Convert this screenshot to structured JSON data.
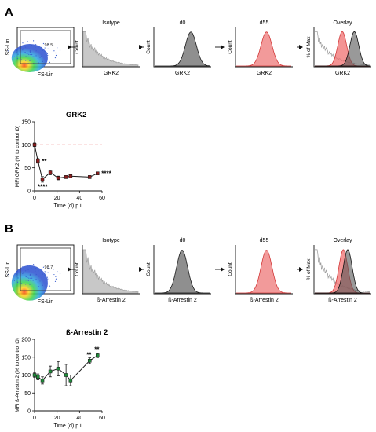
{
  "panels": [
    {
      "letter": "A",
      "gate": {
        "ylabel": "SS-Lin",
        "xlabel": "FS-Lin",
        "percent": "98.5"
      },
      "histograms": [
        {
          "title": "Isotype",
          "xlabel": "GRK2",
          "ylabel": "Count",
          "fill": "#c8c8c8",
          "stroke": "#9a9a9a",
          "kind": "isotype"
        },
        {
          "title": "d0",
          "xlabel": "GRK2",
          "ylabel": "Count",
          "fill": "#8f8f8f",
          "stroke": "#1a1a1a",
          "kind": "peak",
          "peak": 0.66
        },
        {
          "title": "d55",
          "xlabel": "GRK2",
          "ylabel": "Count",
          "fill": "#f29a9a",
          "stroke": "#d23a3a",
          "kind": "peak",
          "peak": 0.55
        },
        {
          "title": "Overlay",
          "xlabel": "GRK2",
          "ylabel": "% of Max",
          "kind": "overlay",
          "peaks": [
            0.5,
            0.72
          ]
        }
      ]
    },
    {
      "letter": "B",
      "gate": {
        "ylabel": "SS-Lin",
        "xlabel": "FS-Lin",
        "percent": "98.7"
      },
      "histograms": [
        {
          "title": "Isotype",
          "xlabel": "ß-Arrestin 2",
          "ylabel": "Count",
          "fill": "#c8c8c8",
          "stroke": "#9a9a9a",
          "kind": "isotype"
        },
        {
          "title": "d0",
          "xlabel": "ß-Arrestin 2",
          "ylabel": "Count",
          "fill": "#8f8f8f",
          "stroke": "#1a1a1a",
          "kind": "peak",
          "peak": 0.5
        },
        {
          "title": "d55",
          "xlabel": "ß-Arrestin 2",
          "ylabel": "Count",
          "fill": "#f29a9a",
          "stroke": "#d23a3a",
          "kind": "peak",
          "peak": 0.55
        },
        {
          "title": "Overlay",
          "xlabel": "ß-Arrestin 2",
          "ylabel": "% of Max",
          "kind": "overlay",
          "peaks": [
            0.52,
            0.6
          ]
        }
      ]
    }
  ],
  "chart_data": [
    {
      "type": "line",
      "title": "GRK2",
      "xlabel": "Time (d) p.i.",
      "ylabel": "MFI GRK2 (% to control t0)",
      "xlim": [
        0,
        60
      ],
      "ylim": [
        0,
        150
      ],
      "xticks": [
        "0",
        "20",
        "40",
        "60"
      ],
      "yticks": [
        "0",
        "50",
        "100",
        "150"
      ],
      "reference_line": 100,
      "x": [
        0,
        3,
        7,
        14,
        21,
        28,
        32,
        49,
        56
      ],
      "y": [
        100,
        65,
        25,
        40,
        28,
        30,
        32,
        30,
        38
      ],
      "error": [
        4,
        5,
        6,
        5,
        4,
        3,
        3,
        3,
        2
      ],
      "annotations": [
        {
          "text": "**",
          "x": 3,
          "y": 65
        },
        {
          "text": "****",
          "x": 7,
          "y": 25
        },
        {
          "text": "****",
          "x": 56,
          "y": 38
        }
      ],
      "marker_color": "#8b1e1e",
      "line_color": "#1a1a1a",
      "ref_color": "#e02020"
    },
    {
      "type": "line",
      "title": "ß-Arrestin 2",
      "xlabel": "Time (d) p.i.",
      "ylabel": "MFI ß-Arrestin 2 (% to control t0)",
      "xlim": [
        0,
        60
      ],
      "ylim": [
        0,
        200
      ],
      "xticks": [
        "0",
        "20",
        "40",
        "60"
      ],
      "yticks": [
        "0",
        "50",
        "100",
        "150",
        "200"
      ],
      "reference_line": 100,
      "x": [
        0,
        3,
        7,
        14,
        21,
        28,
        32,
        49,
        56
      ],
      "y": [
        100,
        95,
        85,
        110,
        118,
        100,
        85,
        140,
        155
      ],
      "error": [
        6,
        8,
        10,
        15,
        20,
        30,
        15,
        8,
        6
      ],
      "annotations": [
        {
          "text": "**",
          "x": 49,
          "y": 140
        },
        {
          "text": "**",
          "x": 56,
          "y": 155
        }
      ],
      "marker_color": "#1f8a3a",
      "line_color": "#1a1a1a",
      "ref_color": "#e02020"
    }
  ]
}
